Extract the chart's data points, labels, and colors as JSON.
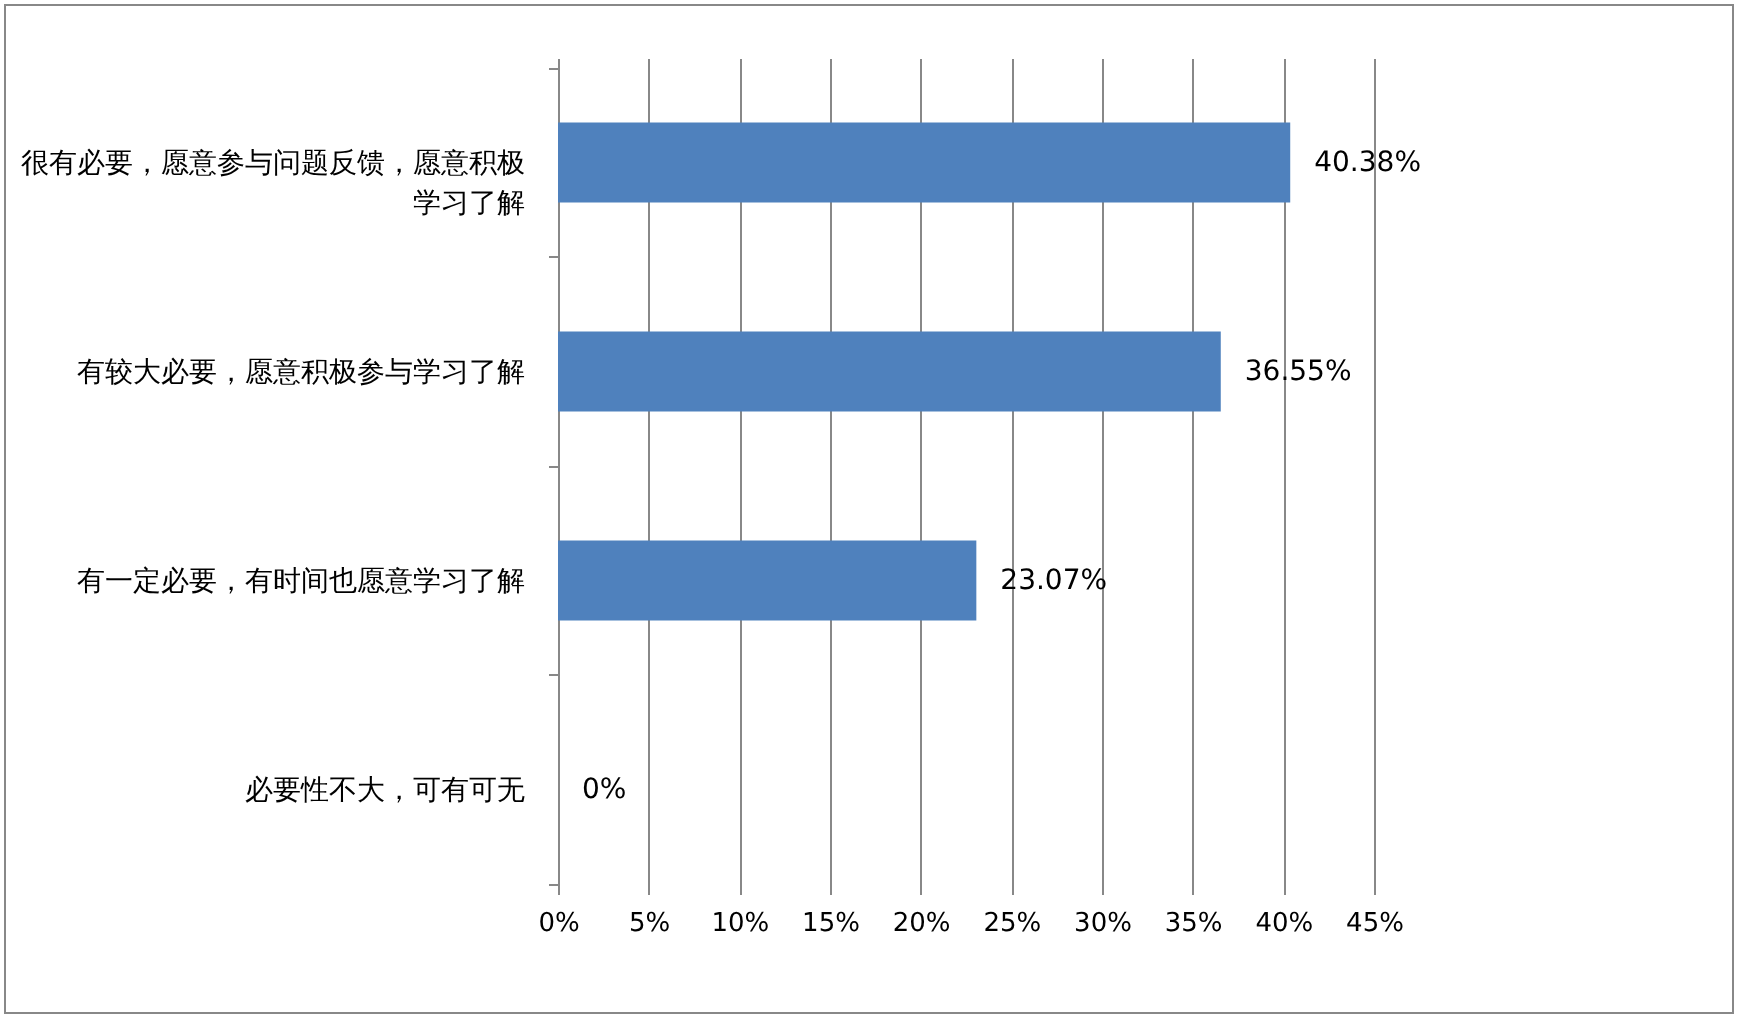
{
  "chart_data": {
    "type": "bar",
    "orientation": "horizontal",
    "categories": [
      "很有必要，愿意参与问题反馈，愿意积极学习了解",
      "有较大必要，愿意积极参与学习了解",
      "有一定必要，有时间也愿意学习了解",
      "必要性不大，可有可无"
    ],
    "values": [
      40.38,
      36.55,
      23.07,
      0
    ],
    "value_labels": [
      "40.38%",
      "36.55%",
      "23.07%",
      "0%"
    ],
    "color": "#4f81bd",
    "xlim": [
      0,
      45
    ],
    "xticks": [
      {
        "value": 0,
        "label": "0%"
      },
      {
        "value": 5,
        "label": "5%"
      },
      {
        "value": 10,
        "label": "10%"
      },
      {
        "value": 15,
        "label": "15%"
      },
      {
        "value": 20,
        "label": "20%"
      },
      {
        "value": 25,
        "label": "25%"
      },
      {
        "value": 30,
        "label": "30%"
      },
      {
        "value": 35,
        "label": "35%"
      },
      {
        "value": 40,
        "label": "40%"
      },
      {
        "value": 45,
        "label": "45%"
      }
    ],
    "grid": "x"
  }
}
